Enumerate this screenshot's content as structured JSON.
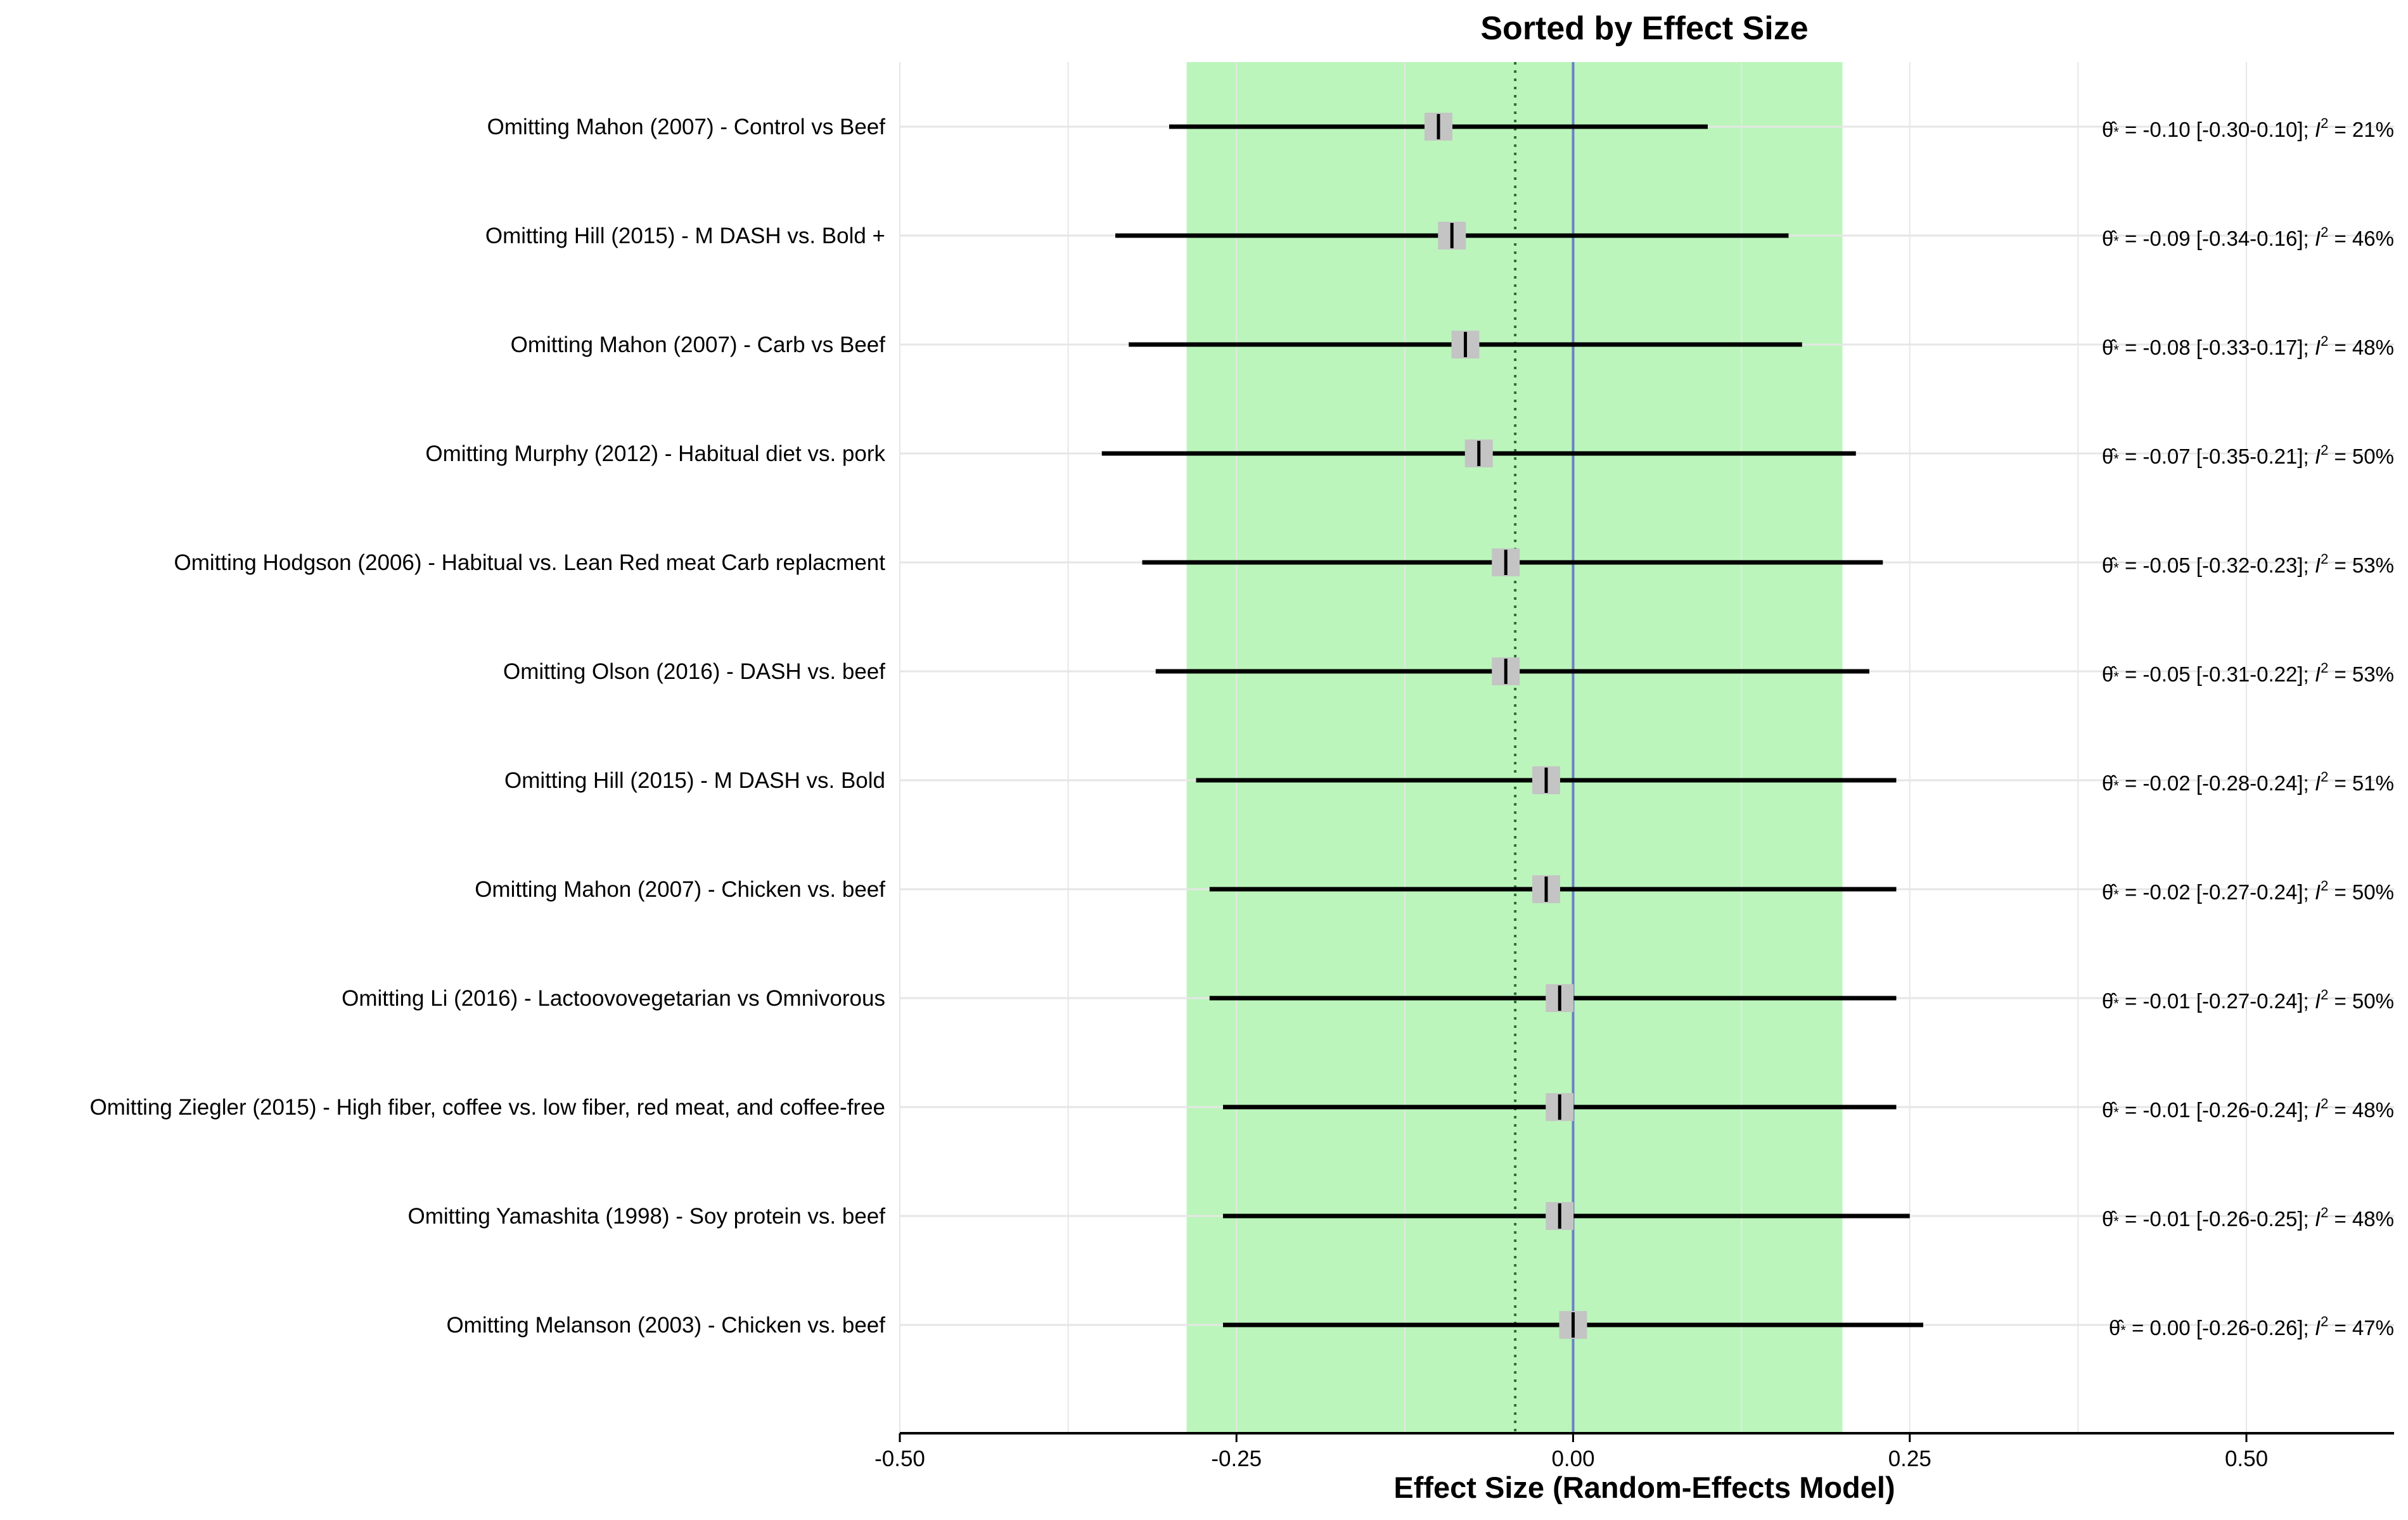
{
  "chart_data": {
    "type": "forest",
    "title": "Sorted by Effect Size",
    "xlabel": "Effect Size (Random-Effects Model)",
    "ylabel": "",
    "xlim": [
      -0.5,
      0.61
    ],
    "xticks": [
      -0.5,
      -0.25,
      0.0,
      0.25,
      0.5
    ],
    "xtick_labels": [
      "-0.50",
      "-0.25",
      "0.00",
      "0.25",
      "0.50"
    ],
    "grid": true,
    "prediction_interval": [
      -0.287,
      0.2
    ],
    "pooled_estimate": -0.043,
    "reference_line": 0.0,
    "colors": {
      "prediction_band": "#bbf5bb",
      "reference_line": "#6c7fc4",
      "pooled_line": "#2e6b3a",
      "ci_line": "#000000",
      "point_box": "#c4c4c4",
      "grid": "#e6e6e6"
    },
    "rows": [
      {
        "label": "Omitting Mahon (2007) - Control vs Beef",
        "estimate": -0.1,
        "lower": -0.3,
        "upper": 0.1,
        "theta": "-0.10",
        "ci": "[-0.30-0.10]",
        "i2": "21%"
      },
      {
        "label": "Omitting Hill (2015) - M DASH vs. Bold +",
        "estimate": -0.09,
        "lower": -0.34,
        "upper": 0.16,
        "theta": "-0.09",
        "ci": "[-0.34-0.16]",
        "i2": "46%"
      },
      {
        "label": "Omitting Mahon (2007) - Carb vs Beef",
        "estimate": -0.08,
        "lower": -0.33,
        "upper": 0.17,
        "theta": "-0.08",
        "ci": "[-0.33-0.17]",
        "i2": "48%"
      },
      {
        "label": "Omitting Murphy (2012) - Habitual diet vs. pork",
        "estimate": -0.07,
        "lower": -0.35,
        "upper": 0.21,
        "theta": "-0.07",
        "ci": "[-0.35-0.21]",
        "i2": "50%"
      },
      {
        "label": "Omitting Hodgson (2006) - Habitual vs. Lean Red meat Carb replacment",
        "estimate": -0.05,
        "lower": -0.32,
        "upper": 0.23,
        "theta": "-0.05",
        "ci": "[-0.32-0.23]",
        "i2": "53%"
      },
      {
        "label": "Omitting Olson (2016) - DASH vs. beef",
        "estimate": -0.05,
        "lower": -0.31,
        "upper": 0.22,
        "theta": "-0.05",
        "ci": "[-0.31-0.22]",
        "i2": "53%"
      },
      {
        "label": "Omitting Hill (2015) - M DASH vs. Bold",
        "estimate": -0.02,
        "lower": -0.28,
        "upper": 0.24,
        "theta": "-0.02",
        "ci": "[-0.28-0.24]",
        "i2": "51%"
      },
      {
        "label": "Omitting Mahon (2007) - Chicken vs. beef",
        "estimate": -0.02,
        "lower": -0.27,
        "upper": 0.24,
        "theta": "-0.02",
        "ci": "[-0.27-0.24]",
        "i2": "50%"
      },
      {
        "label": "Omitting Li (2016) - Lactoovovegetarian vs Omnivorous",
        "estimate": -0.01,
        "lower": -0.27,
        "upper": 0.24,
        "theta": "-0.01",
        "ci": "[-0.27-0.24]",
        "i2": "50%"
      },
      {
        "label": "Omitting Ziegler (2015) - High fiber, coffee vs. low fiber, red meat, and coffee-free",
        "estimate": -0.01,
        "lower": -0.26,
        "upper": 0.24,
        "theta": "-0.01",
        "ci": "[-0.26-0.24]",
        "i2": "48%"
      },
      {
        "label": "Omitting Yamashita (1998) - Soy protein vs. beef",
        "estimate": -0.01,
        "lower": -0.26,
        "upper": 0.25,
        "theta": "-0.01",
        "ci": "[-0.26-0.25]",
        "i2": "48%"
      },
      {
        "label": "Omitting Melanson (2003) - Chicken vs. beef",
        "estimate": 0.0,
        "lower": -0.26,
        "upper": 0.26,
        "theta": " 0.00",
        "ci": "[-0.26-0.26]",
        "i2": "47%"
      }
    ]
  }
}
